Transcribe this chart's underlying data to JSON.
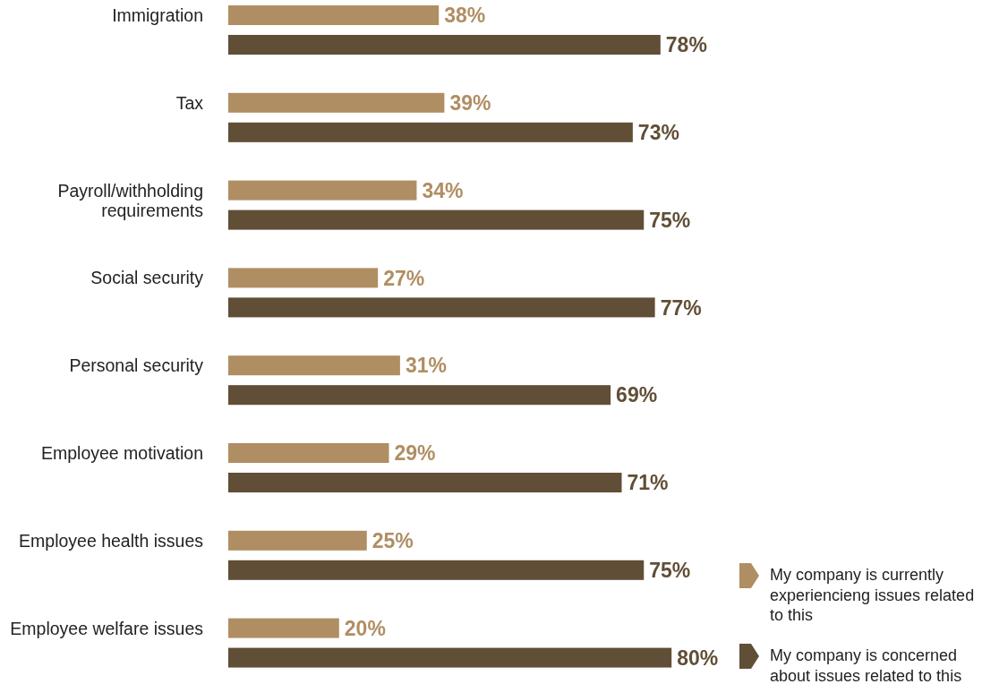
{
  "chart_data": {
    "type": "bar",
    "orientation": "horizontal",
    "legend": "bottom right",
    "categories": [
      "Immigration",
      "Tax",
      "Payroll/withholding requirements",
      "Social security",
      "Personal security",
      "Employee motivation",
      "Employee health issues",
      "Employee welfare issues"
    ],
    "series": [
      {
        "name": "My company is currently experiencieng issues related to this",
        "color": "#b08e63",
        "values": [
          38,
          39,
          34,
          27,
          31,
          29,
          25,
          20
        ],
        "value_labels": [
          "38%",
          "39%",
          "34%",
          "27%",
          "31%",
          "29%",
          "25%",
          "20%"
        ]
      },
      {
        "name": "My company is concerned about issues related to this",
        "color": "#614e36",
        "values": [
          78,
          73,
          75,
          77,
          69,
          71,
          75,
          80
        ],
        "value_labels": [
          "78%",
          "73%",
          "75%",
          "77%",
          "69%",
          "71%",
          "75%",
          "80%"
        ]
      }
    ]
  }
}
